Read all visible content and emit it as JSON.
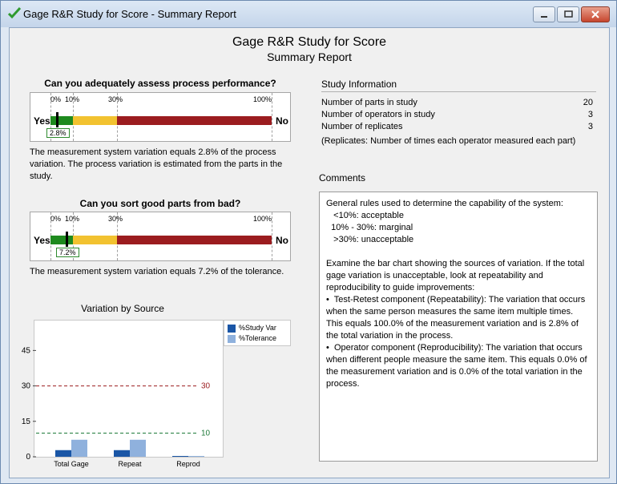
{
  "window": {
    "title": "Gage R&R Study for Score - Summary Report"
  },
  "report": {
    "title": "Gage R&R Study for Score",
    "subtitle": "Summary Report"
  },
  "gauge1": {
    "question": "Can you adequately assess process performance?",
    "ticks": [
      "0%",
      "10%",
      "30%",
      "100%"
    ],
    "yes": "Yes",
    "no": "No",
    "value_label": "2.8%",
    "value": 2.8,
    "description": "The measurement system variation equals 2.8% of the process variation. The process variation is estimated from the parts in the study."
  },
  "gauge2": {
    "question": "Can you sort good parts from bad?",
    "ticks": [
      "0%",
      "10%",
      "30%",
      "100%"
    ],
    "yes": "Yes",
    "no": "No",
    "value_label": "7.2%",
    "value": 7.2,
    "description": "The measurement system variation equals 7.2% of the tolerance."
  },
  "study": {
    "heading": "Study Information",
    "rows": [
      {
        "label": "Number of parts in study",
        "value": "20"
      },
      {
        "label": "Number of operators in study",
        "value": "3"
      },
      {
        "label": "Number of replicates",
        "value": "3"
      }
    ],
    "note": "(Replicates: Number of times each operator measured each part)"
  },
  "comments": {
    "heading": "Comments",
    "text": "General rules used to determine the capability of the system:\n   <10%: acceptable\n  10% - 30%: marginal\n   >30%: unacceptable\n\nExamine the bar chart showing the sources of variation. If the total gage variation is unacceptable, look at repeatability and reproducibility to guide improvements:\n•  Test-Retest component (Repeatability): The variation that occurs when the same person measures the same item multiple times. This equals 100.0% of the measurement variation and is 2.8% of the total variation in the process.\n•  Operator component (Reproducibility): The variation that occurs when different people measure the same item. This equals 0.0% of the measurement variation and is 0.0% of the total variation in the process."
  },
  "colors": {
    "green": "#1e8a1e",
    "yellow": "#f2c230",
    "red": "#9b1c1f",
    "study_var": "#1a56a6",
    "tolerance": "#8fb1dd"
  },
  "chart_data": {
    "type": "bar",
    "title": "Variation by Source",
    "categories": [
      "Total Gage",
      "Repeat",
      "Reprod"
    ],
    "series": [
      {
        "name": "%Study Var",
        "values": [
          2.8,
          2.8,
          0.0
        ]
      },
      {
        "name": "%Tolerance",
        "values": [
          7.2,
          7.2,
          0.0
        ]
      }
    ],
    "yticks": [
      0,
      15,
      30,
      45
    ],
    "ylim": [
      0,
      57
    ],
    "reference_lines": [
      {
        "value": 30,
        "label": "30",
        "color": "#9b1c1f"
      },
      {
        "value": 10,
        "label": "10",
        "color": "#1e7a3a"
      }
    ],
    "legend_position": "top-right",
    "grid": false
  }
}
